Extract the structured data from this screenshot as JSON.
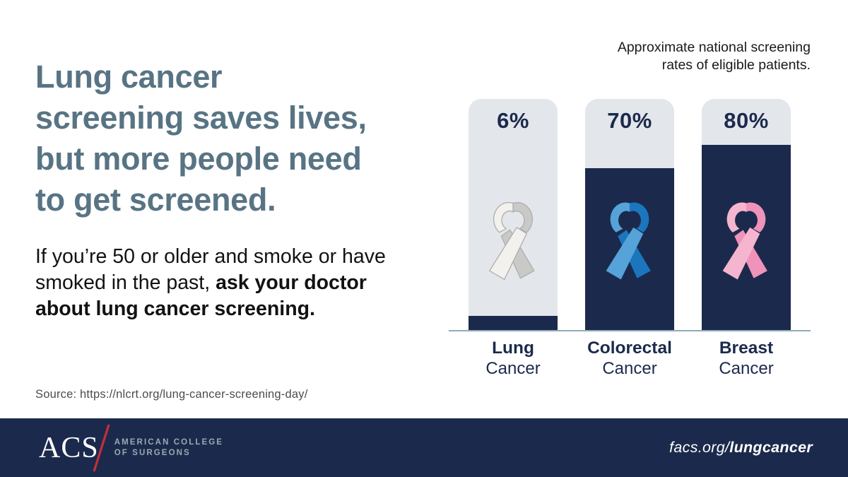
{
  "headline": {
    "lines": [
      "Lung cancer",
      "screening saves lives,",
      "but more people need",
      "to get screened."
    ]
  },
  "intro": {
    "text_regular": "If you’re 50 or older and smoke or have smoked in the past, ",
    "text_bold": "ask your doctor about lung cancer screening."
  },
  "source": {
    "text": "Source: https://nlcrt.org/lung-cancer-screening-day/"
  },
  "chart_data": {
    "type": "bar",
    "title": "Approximate national screening rates of eligible patients.",
    "title_lines": [
      "Approximate national screening",
      "rates of eligible patients."
    ],
    "categories": [
      "Lung Cancer",
      "Colorectal Cancer",
      "Breast Cancer"
    ],
    "values": [
      6,
      70,
      80
    ],
    "unit": "%",
    "ylim": [
      0,
      100
    ],
    "grid": false,
    "legend": false,
    "bars": [
      {
        "category_primary": "Lung",
        "category_secondary": "Cancer",
        "value": 6,
        "value_label": "6%",
        "ribbon": "white-lung-awareness-ribbon",
        "ribbon_light": "#f2f1ed",
        "ribbon_dark": "#c9c9c7",
        "ribbon_outline": "#aeaeac"
      },
      {
        "category_primary": "Colorectal",
        "category_secondary": "Cancer",
        "value": 70,
        "value_label": "70%",
        "ribbon": "blue-colorectal-awareness-ribbon",
        "ribbon_light": "#55a3d8",
        "ribbon_dark": "#1b76bd",
        "ribbon_outline": "none"
      },
      {
        "category_primary": "Breast",
        "category_secondary": "Cancer",
        "value": 80,
        "value_label": "80%",
        "ribbon": "pink-breast-awareness-ribbon",
        "ribbon_light": "#f6b5ce",
        "ribbon_dark": "#ef93ba",
        "ribbon_outline": "none"
      }
    ]
  },
  "footer": {
    "acronym": "ACS",
    "college_line1": "AMERICAN COLLEGE",
    "college_line2": "OF SURGEONS",
    "url_prefix": "facs.org/",
    "url_bold": "lungcancer"
  },
  "colors": {
    "navy": "#1b2a4c",
    "bar_track": "#e3e6eb",
    "headline_slate": "#587484",
    "baseline": "#90aab9",
    "footer_bg": "#1b2a4c",
    "logo_red": "#c2303c",
    "logo_gray": "#9da8b2"
  }
}
